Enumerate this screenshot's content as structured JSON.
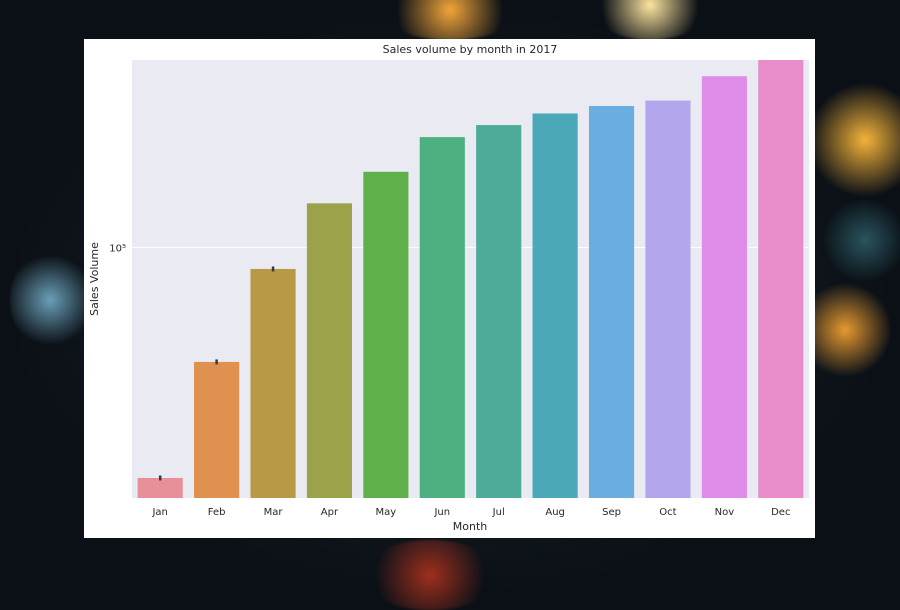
{
  "chart_data": {
    "type": "bar",
    "title": "Sales volume by month in 2017",
    "xlabel": "Month",
    "ylabel": "Sales Volume",
    "yscale": "log",
    "ylim": [
      43000,
      188000
    ],
    "ytick_label": "10⁵",
    "ytick_value": 100000,
    "grid": true,
    "categories": [
      "Jan",
      "Feb",
      "Mar",
      "Apr",
      "May",
      "Jun",
      "Jul",
      "Aug",
      "Sep",
      "Oct",
      "Nov",
      "Dec"
    ],
    "values": [
      46000,
      68000,
      93000,
      116000,
      129000,
      145000,
      151000,
      157000,
      161000,
      164000,
      178000,
      202000
    ],
    "error_bar_months": [
      "Jan",
      "Feb",
      "Mar"
    ],
    "colors": [
      "#e8909a",
      "#e0904f",
      "#b89a46",
      "#9ca24a",
      "#5fb04a",
      "#4cb081",
      "#4cab99",
      "#4aa8b8",
      "#6aade0",
      "#b3a6ec",
      "#df8ce9",
      "#e88dca"
    ]
  }
}
